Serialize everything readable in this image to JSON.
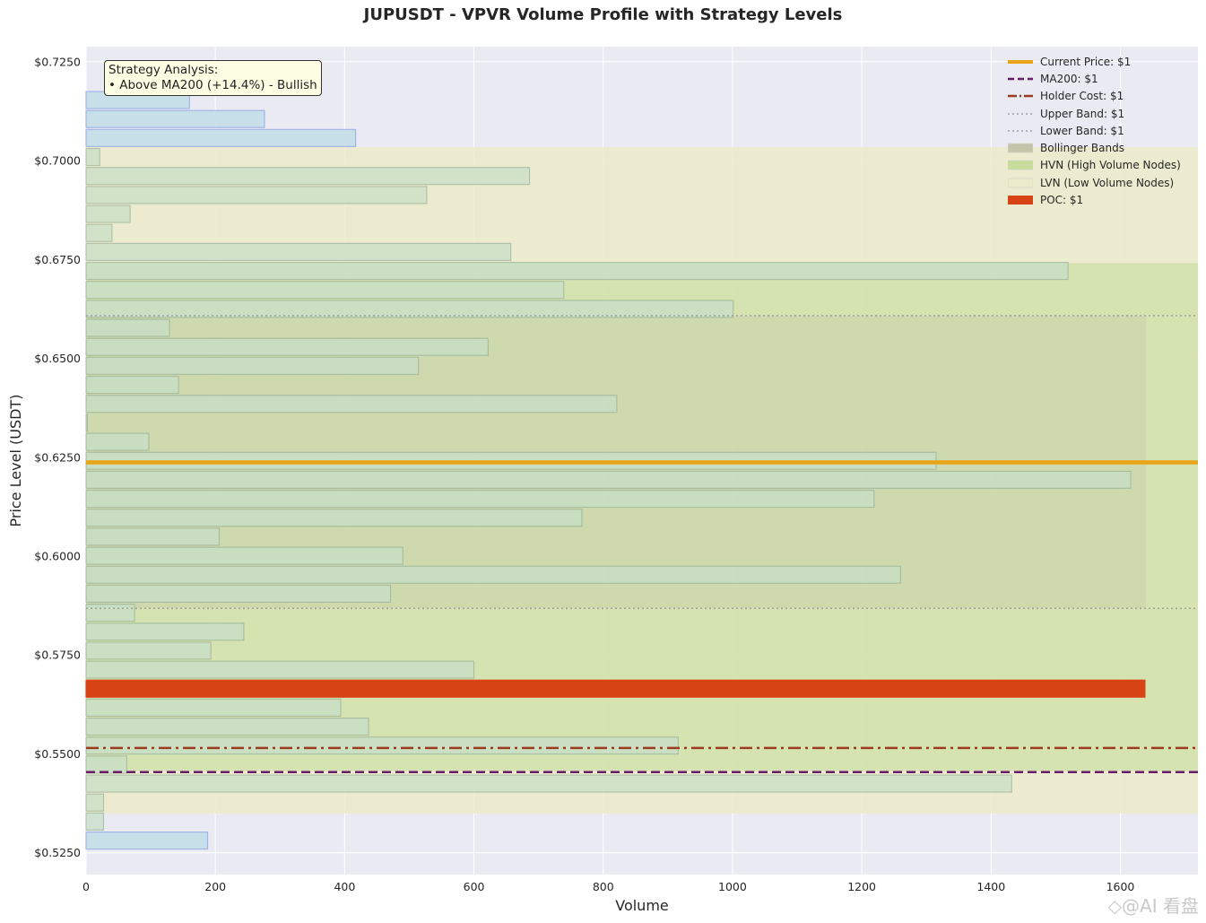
{
  "chart_data": {
    "type": "bar",
    "orientation": "horizontal",
    "title": "JUPUSDT - VPVR Volume Profile with Strategy Levels",
    "xlabel": "Volume",
    "ylabel": "Price Level (USDT)",
    "xlim": [
      0,
      1720
    ],
    "ylim": [
      0.5195,
      0.7288
    ],
    "xticks": [
      "0",
      "200",
      "400",
      "600",
      "800",
      "1000",
      "1200",
      "1400",
      "1600"
    ],
    "yticks": [
      "$0.5250",
      "$0.5500",
      "$0.5750",
      "$0.6000",
      "$0.6250",
      "$0.6500",
      "$0.6750",
      "$0.7000",
      "$0.7250"
    ],
    "grid": true,
    "legend_position": "top-right",
    "bin_height": 0.0043,
    "profile": [
      {
        "price": 0.5281,
        "volume": 188,
        "zone": "normal"
      },
      {
        "price": 0.5329,
        "volume": 27,
        "zone": "lvn"
      },
      {
        "price": 0.5377,
        "volume": 27,
        "zone": "lvn"
      },
      {
        "price": 0.5425,
        "volume": 1432,
        "zone": "lvn"
      },
      {
        "price": 0.5473,
        "volume": 63,
        "zone": "hvn"
      },
      {
        "price": 0.5521,
        "volume": 916,
        "zone": "hvn"
      },
      {
        "price": 0.5569,
        "volume": 437,
        "zone": "hvn"
      },
      {
        "price": 0.5617,
        "volume": 394,
        "zone": "hvn"
      },
      {
        "price": 0.5665,
        "volume": 1638,
        "zone": "poc"
      },
      {
        "price": 0.5713,
        "volume": 600,
        "zone": "hvn"
      },
      {
        "price": 0.5761,
        "volume": 193,
        "zone": "hvn"
      },
      {
        "price": 0.5809,
        "volume": 244,
        "zone": "hvn"
      },
      {
        "price": 0.5857,
        "volume": 75,
        "zone": "hvn"
      },
      {
        "price": 0.5905,
        "volume": 471,
        "zone": "hvn"
      },
      {
        "price": 0.5953,
        "volume": 1260,
        "zone": "hvn"
      },
      {
        "price": 0.6001,
        "volume": 490,
        "zone": "hvn"
      },
      {
        "price": 0.6049,
        "volume": 206,
        "zone": "hvn"
      },
      {
        "price": 0.6097,
        "volume": 767,
        "zone": "hvn"
      },
      {
        "price": 0.6145,
        "volume": 1219,
        "zone": "hvn"
      },
      {
        "price": 0.6193,
        "volume": 1616,
        "zone": "hvn"
      },
      {
        "price": 0.6241,
        "volume": 1315,
        "zone": "hvn"
      },
      {
        "price": 0.6289,
        "volume": 97,
        "zone": "hvn"
      },
      {
        "price": 0.6337,
        "volume": 2,
        "zone": "hvn"
      },
      {
        "price": 0.6385,
        "volume": 821,
        "zone": "hvn"
      },
      {
        "price": 0.6433,
        "volume": 143,
        "zone": "hvn"
      },
      {
        "price": 0.6481,
        "volume": 514,
        "zone": "hvn"
      },
      {
        "price": 0.6529,
        "volume": 622,
        "zone": "hvn"
      },
      {
        "price": 0.6577,
        "volume": 129,
        "zone": "hvn"
      },
      {
        "price": 0.6625,
        "volume": 1001,
        "zone": "hvn"
      },
      {
        "price": 0.6673,
        "volume": 739,
        "zone": "hvn"
      },
      {
        "price": 0.6721,
        "volume": 1519,
        "zone": "lvn"
      },
      {
        "price": 0.6769,
        "volume": 657,
        "zone": "lvn"
      },
      {
        "price": 0.6817,
        "volume": 40,
        "zone": "lvn"
      },
      {
        "price": 0.6865,
        "volume": 68,
        "zone": "lvn"
      },
      {
        "price": 0.6913,
        "volume": 527,
        "zone": "lvn"
      },
      {
        "price": 0.6961,
        "volume": 686,
        "zone": "lvn"
      },
      {
        "price": 0.7009,
        "volume": 21,
        "zone": "lvn"
      },
      {
        "price": 0.7057,
        "volume": 417,
        "zone": "normal"
      },
      {
        "price": 0.7105,
        "volume": 276,
        "zone": "normal"
      },
      {
        "price": 0.7153,
        "volume": 160,
        "zone": "normal"
      }
    ],
    "levels": {
      "current_price": 0.6237,
      "ma200": 0.5454,
      "holder_cost": 0.5515,
      "upper_band": 0.6608,
      "lower_band": 0.5868
    },
    "zones": {
      "lvn": [
        0.5349,
        0.7034
      ],
      "hvn": [
        0.5457,
        0.6741
      ],
      "bollinger": {
        "range": [
          0.5868,
          0.6608
        ],
        "volume_extent": 1640
      }
    },
    "colors": {
      "current_price": "#e8a317",
      "ma200": "#6a1b6a",
      "holder_cost": "#9c3b1f",
      "band": "#a0a0a0",
      "poc": "#d84315",
      "bar_normal": "#c6dfe9",
      "bar_zone": "#c8e0c8",
      "bar_edge_normal": "#9fb3e8",
      "bar_edge_zone": "#9cb59c",
      "plot_bg": "#eaeaf2",
      "lvn_fill": "#ecebc9",
      "hvn_fill": "#c6dd9c",
      "bollinger_fill": "#c4c4a8"
    }
  },
  "annotation": {
    "line1": "Strategy Analysis:",
    "line2": "• Above MA200 (+14.4%) - Bullish"
  },
  "legend": [
    {
      "label": "Current Price: $1",
      "style": "solid-thick",
      "color_key": "current_price"
    },
    {
      "label": "MA200: $1",
      "style": "dashed",
      "color_key": "ma200"
    },
    {
      "label": "Holder Cost: $1",
      "style": "dashdot",
      "color_key": "holder_cost"
    },
    {
      "label": "Upper Band: $1",
      "style": "dotted",
      "color_key": "band"
    },
    {
      "label": "Lower Band: $1",
      "style": "dotted",
      "color_key": "band"
    },
    {
      "label": "Bollinger Bands",
      "style": "patch",
      "color_key": "bollinger_fill"
    },
    {
      "label": "HVN (High Volume Nodes)",
      "style": "patch",
      "color_key": "hvn_fill"
    },
    {
      "label": "LVN (Low Volume Nodes)",
      "style": "patch",
      "color_key": "lvn_fill"
    },
    {
      "label": "POC: $1",
      "style": "patch-solid",
      "color_key": "poc"
    }
  ],
  "watermark": "◇@AI 看盘"
}
